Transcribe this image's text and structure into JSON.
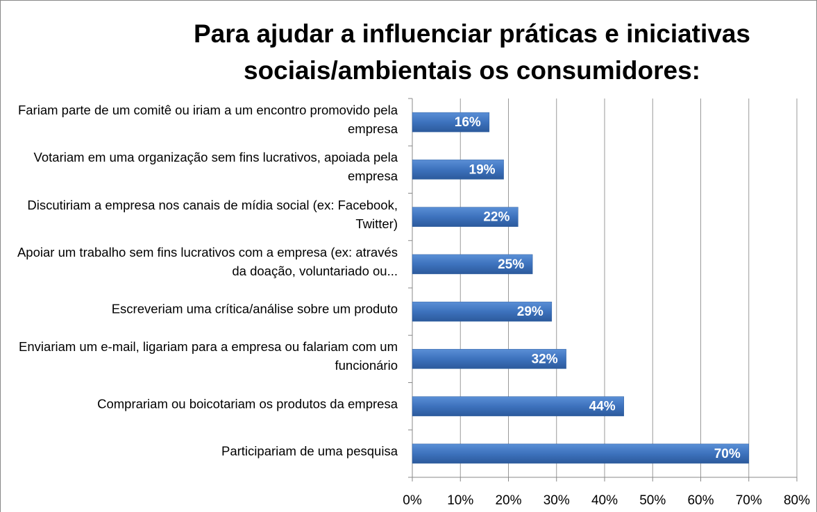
{
  "chart_data": {
    "type": "bar",
    "orientation": "horizontal",
    "title": "Para ajudar a influenciar práticas e iniciativas sociais/ambientais os consumidores:",
    "categories": [
      "Fariam parte de um comitê ou iriam a um encontro promovido pela empresa",
      "Votariam em uma organização sem fins lucrativos, apoiada pela empresa",
      "Discutiriam a empresa nos canais de mídia social (ex: Facebook, Twitter)",
      "Apoiar um trabalho sem fins lucrativos com a empresa (ex: através da doação, voluntariado ou...",
      "Escreveriam uma crítica/análise sobre um produto",
      "Enviariam um e-mail, ligariam para a empresa ou falariam com um funcionário",
      "Comprariam ou boicotariam os produtos da empresa",
      "Participariam de uma pesquisa"
    ],
    "values": [
      16,
      19,
      22,
      25,
      29,
      32,
      44,
      70
    ],
    "value_labels": [
      "16%",
      "19%",
      "22%",
      "25%",
      "29%",
      "32%",
      "44%",
      "70%"
    ],
    "color": "#3d72bd",
    "xlim": [
      0,
      80
    ],
    "xticks": [
      {
        "value": 0,
        "label": "0%"
      },
      {
        "value": 10,
        "label": "10%"
      },
      {
        "value": 20,
        "label": "20%"
      },
      {
        "value": 30,
        "label": "30%"
      },
      {
        "value": 40,
        "label": "40%"
      },
      {
        "value": 50,
        "label": "50%"
      },
      {
        "value": 60,
        "label": "60%"
      },
      {
        "value": 70,
        "label": "70%"
      },
      {
        "value": 80,
        "label": "80%"
      }
    ],
    "grid": true
  }
}
